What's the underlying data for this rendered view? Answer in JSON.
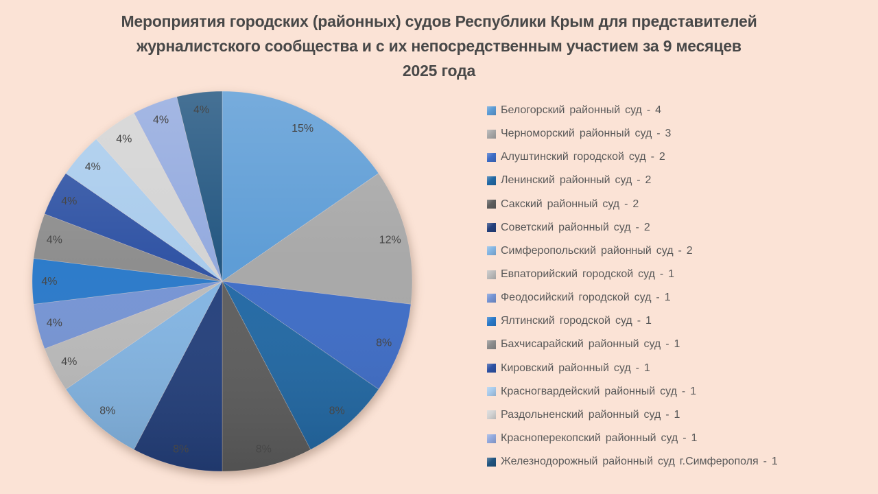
{
  "background_color": "#FBE3D6",
  "title": {
    "full": "Мероприятия городских (районных) судов Республики Крым для представителей журналистского сообщества и с их непосредственным участием за 9 месяцев 2025 года",
    "lines": [
      "Мероприятия городских (районных) судов Республики Крым для представителей",
      "журналистского сообщества и с их непосредственным участием за 9 месяцев",
      "2025 года"
    ],
    "color": "#484848"
  },
  "chart_data": {
    "type": "pie",
    "title": "Мероприятия городских (районных) судов Республики Крым для представителей журналистского сообщества и с их непосредственным участием за 9 месяцев 2025 года",
    "legend_position": "right",
    "start_angle_deg": 0,
    "direction": "clockwise",
    "label_color": "#474747",
    "slices": [
      {
        "name": "Белогорский районный суд",
        "value": 4,
        "percent_label": "15%",
        "color": "#5B9BD5",
        "legend_label": "Белогорский районный суд - 4"
      },
      {
        "name": "Черноморский районный суд",
        "value": 3,
        "percent_label": "12%",
        "color": "#A7A7A7",
        "legend_label": "Черноморский районный суд - 3"
      },
      {
        "name": "Алуштинский городской суд",
        "value": 2,
        "percent_label": "8%",
        "color": "#3D6CC6",
        "legend_label": "Алуштинский городской суд - 2"
      },
      {
        "name": "Ленинский районный суд",
        "value": 2,
        "percent_label": "8%",
        "color": "#2168A4",
        "legend_label": "Ленинский районный суд - 2"
      },
      {
        "name": "Сакский районный суд",
        "value": 2,
        "percent_label": "8%",
        "color": "#5D5D5D",
        "legend_label": "Сакский районный суд - 2"
      },
      {
        "name": "Советский районный суд",
        "value": 2,
        "percent_label": "8%",
        "color": "#24407C",
        "legend_label": "Советский районный суд - 2"
      },
      {
        "name": "Симферопольский районный суд",
        "value": 2,
        "percent_label": "8%",
        "color": "#83B5E3",
        "legend_label": "Симферопольский районный суд - 2"
      },
      {
        "name": "Евпаторийский городской суд",
        "value": 1,
        "percent_label": "4%",
        "color": "#BBBBBB",
        "legend_label": "Евпаторийский городской суд - 1"
      },
      {
        "name": "Феодосийский городской суд",
        "value": 1,
        "percent_label": "4%",
        "color": "#7594D4",
        "legend_label": "Феодосийский городской суд - 1"
      },
      {
        "name": "Ялтинский городской суд",
        "value": 1,
        "percent_label": "4%",
        "color": "#2979C9",
        "legend_label": "Ялтинский городской суд - 1"
      },
      {
        "name": "Бахчисарайский районный суд",
        "value": 1,
        "percent_label": "4%",
        "color": "#8C8C8C",
        "legend_label": "Бахчисарайский районный суд - 1"
      },
      {
        "name": "Кировский районный суд",
        "value": 1,
        "percent_label": "4%",
        "color": "#2D51A3",
        "legend_label": "Кировский районный суд - 1"
      },
      {
        "name": "Красногвардейский районный суд",
        "value": 1,
        "percent_label": "4%",
        "color": "#A8CBEC",
        "legend_label": "Красногвардейский районный суд - 1"
      },
      {
        "name": "Раздольненский районный суд",
        "value": 1,
        "percent_label": "4%",
        "color": "#D3D3D3",
        "legend_label": "Раздольненский районный суд - 1"
      },
      {
        "name": "Красноперекопский районный суд",
        "value": 1,
        "percent_label": "4%",
        "color": "#92A9DE",
        "legend_label": "Красноперекопский районный суд - 1"
      },
      {
        "name": "Железнодорожный районный суд г.Симферополя",
        "value": 1,
        "percent_label": "4%",
        "color": "#20547F",
        "legend_label": "Железнодорожный районный суд г.Симферополя - 1"
      }
    ]
  },
  "legend": {
    "text_color": "#595959"
  }
}
